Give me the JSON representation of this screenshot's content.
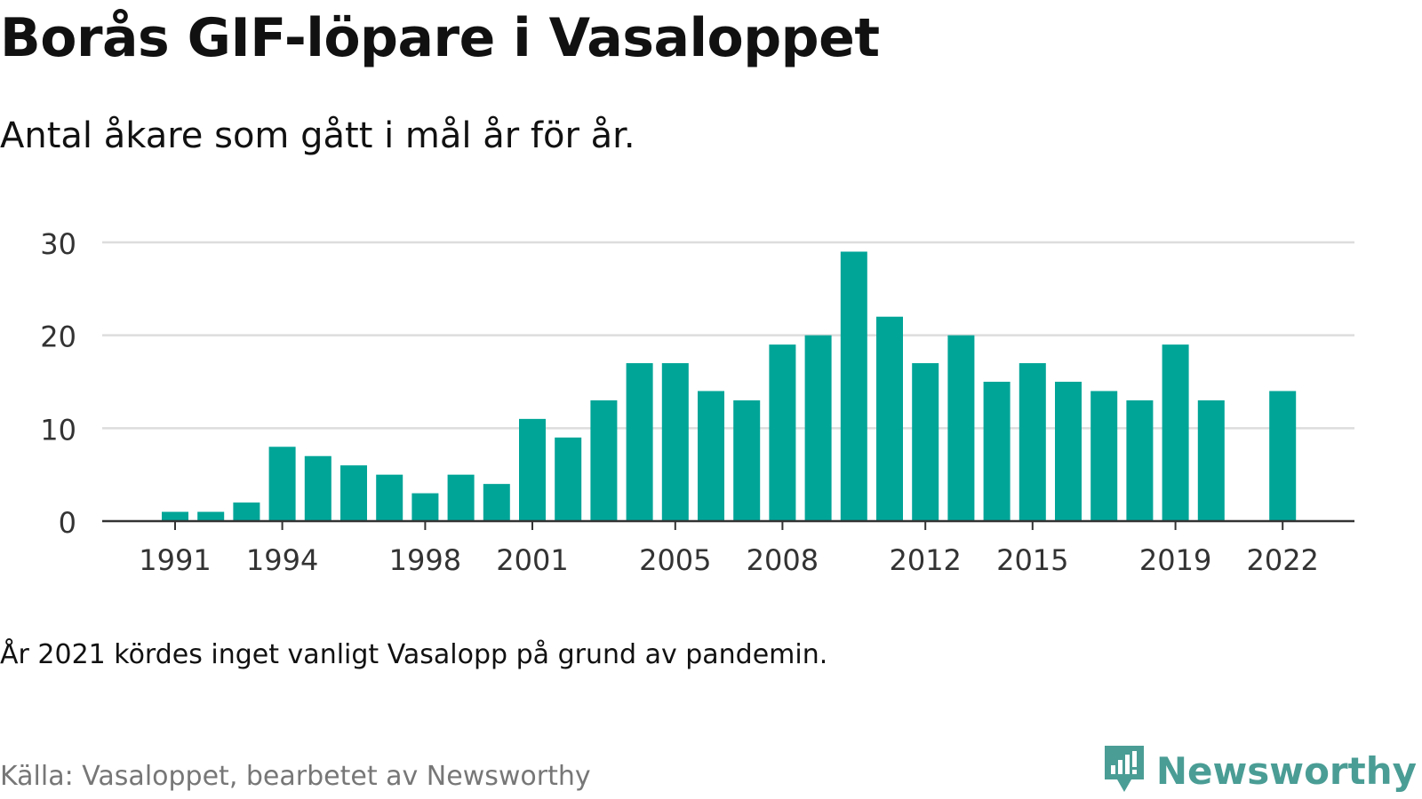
{
  "title": "Borås GIF-löpare i Vasaloppet",
  "subtitle": "Antal åkare som gått i mål år för år.",
  "note": "År 2021 kördes inget vanligt Vasalopp på grund av pandemin.",
  "source": "Källa: Vasaloppet, bearbetet av Newsworthy",
  "brand": {
    "name": "Newsworthy",
    "icon": "newsworthy-logo-icon"
  },
  "colors": {
    "bar": "#00a598",
    "grid": "#dddddd",
    "axis": "#333333",
    "brand": "#4a9d95"
  },
  "chart_data": {
    "type": "bar",
    "title": "Borås GIF-löpare i Vasaloppet",
    "subtitle": "Antal åkare som gått i mål år för år.",
    "xlabel": "",
    "ylabel": "",
    "ylim": [
      0,
      30
    ],
    "yticks": [
      0,
      10,
      20,
      30
    ],
    "grid": true,
    "xticklabels": [
      1991,
      1994,
      1998,
      2001,
      2005,
      2008,
      2012,
      2015,
      2019,
      2022
    ],
    "x": [
      1991,
      1992,
      1993,
      1994,
      1995,
      1996,
      1997,
      1998,
      1999,
      2000,
      2001,
      2002,
      2003,
      2004,
      2005,
      2006,
      2007,
      2008,
      2009,
      2010,
      2011,
      2012,
      2013,
      2014,
      2015,
      2016,
      2017,
      2018,
      2019,
      2020,
      2021,
      2022
    ],
    "values": [
      1,
      1,
      2,
      8,
      7,
      6,
      5,
      3,
      5,
      4,
      11,
      9,
      13,
      17,
      17,
      14,
      13,
      19,
      20,
      29,
      22,
      17,
      20,
      15,
      17,
      15,
      14,
      13,
      19,
      13,
      null,
      14
    ]
  }
}
